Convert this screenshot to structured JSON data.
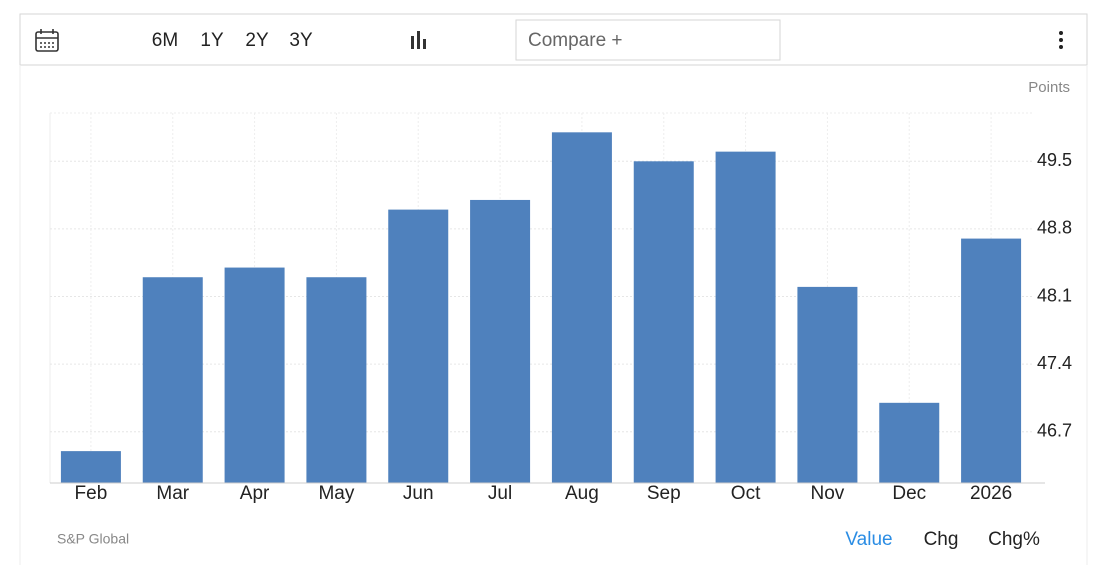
{
  "toolbar": {
    "ranges": [
      "6M",
      "1Y",
      "2Y",
      "3Y"
    ],
    "compare": "Compare +"
  },
  "chart_data": {
    "type": "bar",
    "unit": "Points",
    "categories": [
      "Feb",
      "Mar",
      "Apr",
      "May",
      "Jun",
      "Jul",
      "Aug",
      "Sep",
      "Oct",
      "Nov",
      "Dec",
      "2026"
    ],
    "values": [
      46.5,
      48.3,
      48.4,
      48.3,
      49.0,
      49.1,
      49.8,
      49.5,
      49.6,
      48.2,
      47.0,
      48.7
    ],
    "color": "#4f81bd",
    "ylim": [
      46.17,
      50.0
    ],
    "yticks": [
      46.7,
      47.4,
      48.1,
      48.8,
      49.5
    ],
    "grid": true
  },
  "footer": {
    "source": "S&P Global",
    "tabs": [
      "Value",
      "Chg",
      "Chg%"
    ]
  }
}
